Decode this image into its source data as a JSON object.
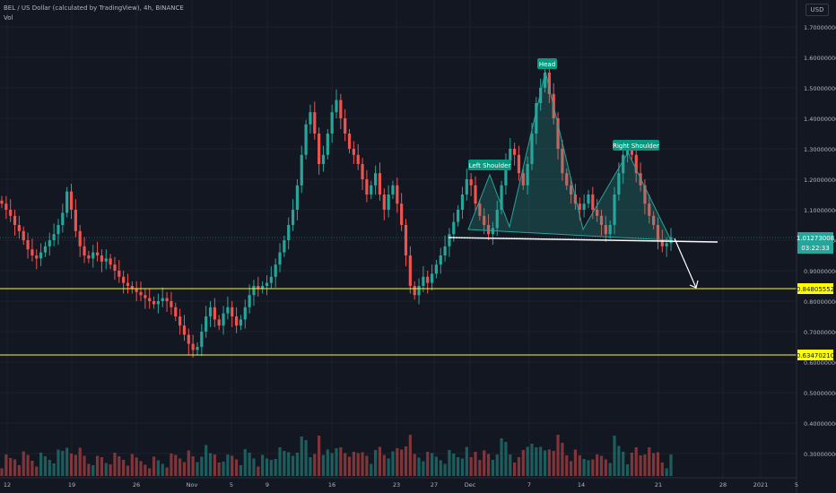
{
  "header": {
    "symbol_line": "BEL / US Dollar (calculated by TradingView), 4h, BINANCE",
    "vol_label": "Vol",
    "currency": "USD"
  },
  "colors": {
    "background": "#131722",
    "grid": "#1e222d",
    "up": "#26a69a",
    "down": "#ef5350",
    "level_line": "#ffff00",
    "pattern_fill": "#26a69a",
    "neckline": "#ffffff",
    "label_bg": "#089981",
    "axis_text": "#b2b5be"
  },
  "axis": {
    "price_ticks": [
      "1.70000000",
      "1.60000000",
      "1.50000000",
      "1.40000000",
      "1.30000000",
      "1.20000000",
      "1.10000000",
      "1.00000000",
      "0.90000000",
      "0.80000000",
      "0.70000000",
      "0.60000000",
      "0.50000000",
      "0.40000000",
      "0.30000000"
    ],
    "date_ticks": [
      "12",
      "19",
      "26",
      "Nov",
      "5",
      "9",
      "16",
      "23",
      "27",
      "Dec",
      "7",
      "14",
      "21",
      "28",
      "2021",
      "5"
    ]
  },
  "price_labels": {
    "current_price": "1.01273008",
    "countdown": "03:22:33",
    "support_1": "0.84805552",
    "support_2": "0.63470210"
  },
  "annotations": {
    "left_shoulder": "Left Shoulder",
    "head": "Head",
    "right_shoulder": "Right Shoulder"
  },
  "chart_data": {
    "type": "candlestick",
    "timeframe": "4h",
    "ylim": [
      0.27,
      1.77
    ],
    "support_levels": [
      0.84805552,
      0.6347021
    ],
    "last_price": 1.01273008,
    "closes": [
      1.12,
      1.1,
      1.08,
      1.05,
      1.03,
      1.0,
      0.97,
      0.95,
      0.94,
      0.96,
      0.98,
      1.0,
      1.02,
      1.05,
      1.09,
      1.16,
      1.1,
      1.03,
      0.98,
      0.95,
      0.94,
      0.96,
      0.95,
      0.93,
      0.94,
      0.92,
      0.9,
      0.88,
      0.86,
      0.85,
      0.84,
      0.83,
      0.82,
      0.81,
      0.8,
      0.79,
      0.8,
      0.81,
      0.8,
      0.78,
      0.75,
      0.72,
      0.69,
      0.66,
      0.64,
      0.65,
      0.7,
      0.75,
      0.78,
      0.74,
      0.72,
      0.76,
      0.78,
      0.75,
      0.72,
      0.74,
      0.78,
      0.82,
      0.85,
      0.84,
      0.85,
      0.86,
      0.88,
      0.92,
      0.96,
      1.0,
      1.05,
      1.1,
      1.18,
      1.28,
      1.38,
      1.42,
      1.35,
      1.25,
      1.28,
      1.35,
      1.42,
      1.46,
      1.4,
      1.35,
      1.3,
      1.28,
      1.25,
      1.2,
      1.15,
      1.18,
      1.22,
      1.15,
      1.1,
      1.15,
      1.18,
      1.12,
      1.05,
      0.95,
      0.85,
      0.82,
      0.85,
      0.88,
      0.86,
      0.89,
      0.92,
      0.95,
      0.98,
      1.02,
      1.06,
      1.1,
      1.15,
      1.2,
      1.18,
      1.12,
      1.08,
      1.05,
      1.02,
      1.04,
      1.1,
      1.18,
      1.26,
      1.3,
      1.28,
      1.22,
      1.18,
      1.25,
      1.35,
      1.45,
      1.5,
      1.55,
      1.48,
      1.4,
      1.3,
      1.22,
      1.18,
      1.15,
      1.12,
      1.1,
      1.12,
      1.15,
      1.1,
      1.08,
      1.05,
      1.02,
      1.05,
      1.15,
      1.22,
      1.28,
      1.3,
      1.28,
      1.22,
      1.18,
      1.12,
      1.08,
      1.05,
      1.0,
      0.98,
      0.99,
      1.01
    ]
  }
}
